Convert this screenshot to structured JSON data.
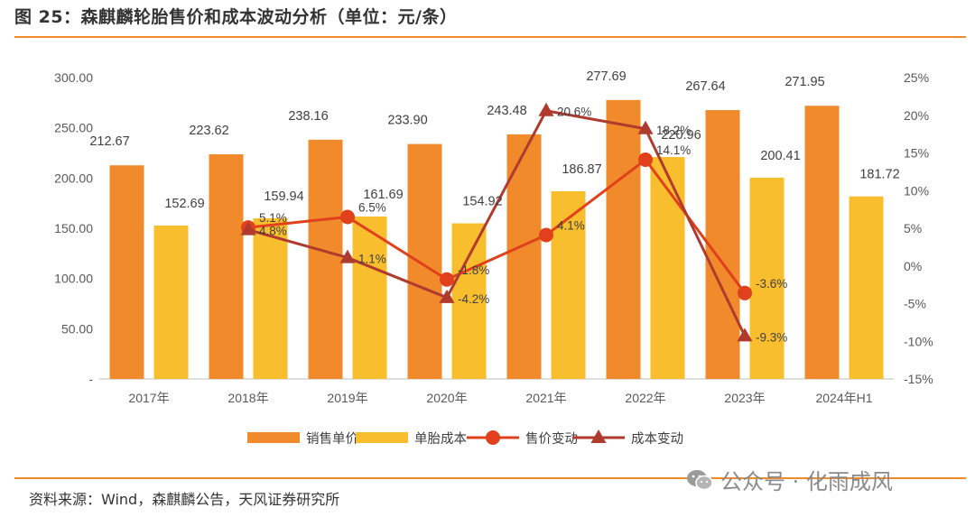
{
  "header": {
    "title": "图 25：森麒麟轮胎售价和成本波动分析（单位：元/条）"
  },
  "footer": {
    "source": "资料来源：Wind，森麒麟公告，天风证券研究所",
    "watermark": "公众号 · 化雨成风",
    "watermark_icon": "wechat-icon"
  },
  "colors": {
    "accent_rule": "#F08A2B",
    "sales_price": "#F08A2B",
    "unit_cost": "#F9BE2D",
    "price_change": "#E1401C",
    "cost_change": "#B03A2E"
  },
  "chart_data": {
    "type": "bar",
    "categories": [
      "2017年",
      "2018年",
      "2019年",
      "2020年",
      "2021年",
      "2022年",
      "2023年",
      "2024年H1"
    ],
    "left_axis": {
      "ylim": [
        0,
        300
      ],
      "ticks": [
        "-",
        "50.00",
        "100.00",
        "150.00",
        "200.00",
        "250.00",
        "300.00"
      ]
    },
    "right_axis": {
      "ylim": [
        -15,
        25
      ],
      "unit": "%",
      "ticks": [
        "-15%",
        "-10%",
        "-5%",
        "0%",
        "5%",
        "10%",
        "15%",
        "20%",
        "25%"
      ]
    },
    "series": [
      {
        "name": "销售单价",
        "kind": "bar",
        "axis": "left",
        "color": "#F08A2B",
        "values": [
          212.67,
          223.62,
          238.16,
          233.9,
          243.48,
          277.69,
          267.64,
          271.95
        ],
        "labels": [
          "212.67",
          "223.62",
          "238.16",
          "233.90",
          "243.48",
          "277.69",
          "267.64",
          "271.95"
        ]
      },
      {
        "name": "单胎成本",
        "kind": "bar",
        "axis": "left",
        "color": "#F9BE2D",
        "values": [
          152.69,
          159.94,
          161.69,
          154.92,
          186.87,
          220.96,
          200.41,
          181.72
        ],
        "labels": [
          "152.69",
          "159.94",
          "161.69",
          "154.92",
          "186.87",
          "220.96",
          "200.41",
          "181.72"
        ]
      },
      {
        "name": "售价变动",
        "kind": "line",
        "marker": "circle",
        "axis": "right",
        "color": "#E1401C",
        "values": [
          null,
          5.1,
          6.5,
          -1.8,
          4.1,
          14.1,
          -3.6,
          null
        ],
        "labels": [
          "",
          "5.1%",
          "6.5%",
          "-1.8%",
          "4.1%",
          "14.1%",
          "-3.6%",
          ""
        ]
      },
      {
        "name": "成本变动",
        "kind": "line",
        "marker": "triangle",
        "axis": "right",
        "color": "#B03A2E",
        "values": [
          null,
          4.8,
          1.1,
          -4.2,
          20.6,
          18.2,
          -9.3,
          null
        ],
        "labels": [
          "",
          "4.8%",
          "1.1%",
          "-4.2%",
          "20.6%",
          "18.2%",
          "-9.3%",
          ""
        ]
      }
    ],
    "legend": {
      "position": "bottom-center",
      "items": [
        "销售单价",
        "单胎成本",
        "售价变动",
        "成本变动"
      ]
    },
    "grid": false
  }
}
